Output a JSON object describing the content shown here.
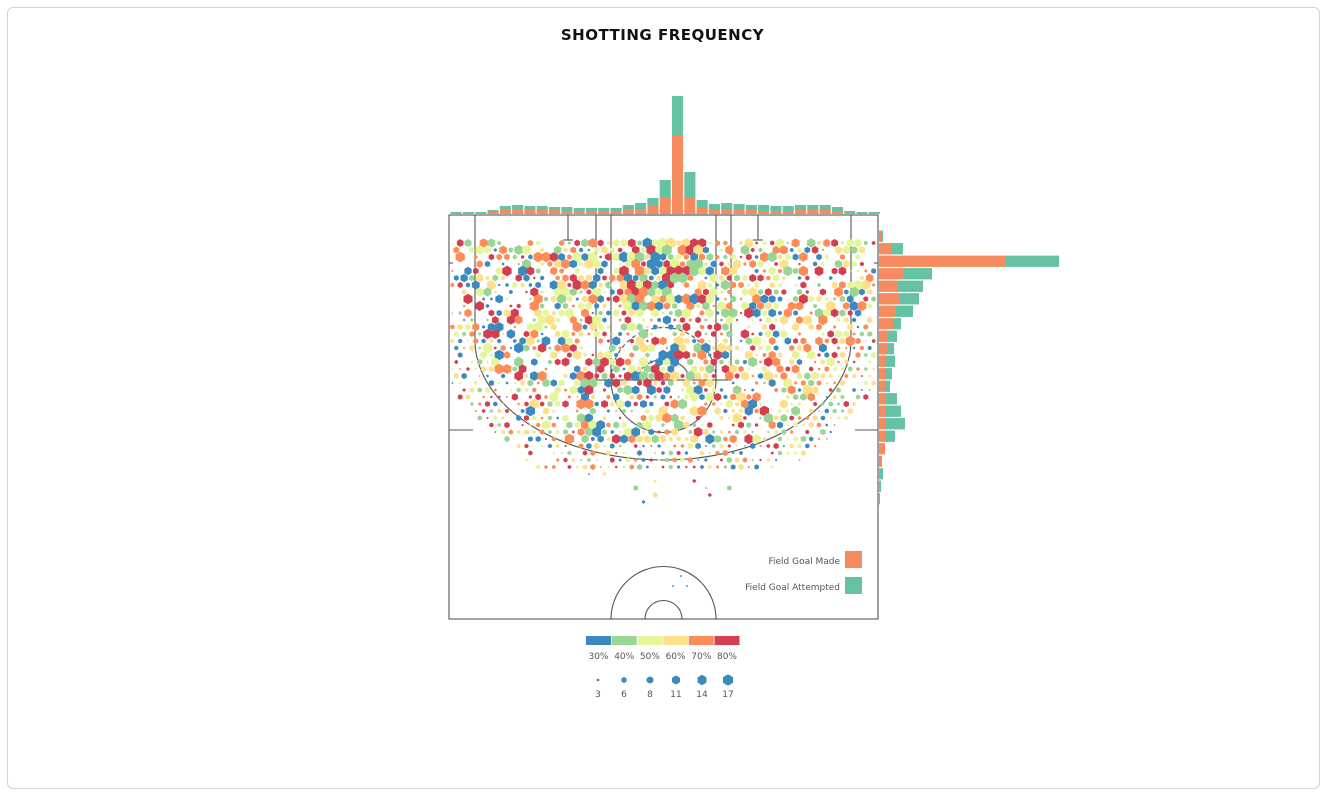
{
  "title": "SHOTTING FREQUENCY",
  "colors": {
    "made": "#f58b5e",
    "attempted": "#66c2a5",
    "scale": [
      "#3a8abf",
      "#99d594",
      "#e6f598",
      "#fee08b",
      "#fc8d59",
      "#d53e4f"
    ]
  },
  "legend": {
    "made_label": "Field Goal Made",
    "attempted_label": "Field Goal Attempted",
    "pct_labels": [
      "30%",
      "40%",
      "50%",
      "60%",
      "70%",
      "80%"
    ],
    "size_labels": [
      "3",
      "6",
      "8",
      "11",
      "14",
      "17"
    ]
  },
  "chart_data": {
    "type": "heatmap",
    "title": "SHOTTING FREQUENCY",
    "top_histogram": {
      "made": [
        1,
        1,
        1,
        2,
        5,
        5,
        4,
        5,
        4,
        3,
        3,
        2,
        3,
        3,
        5,
        5,
        8,
        17,
        78,
        16,
        7,
        4,
        5,
        4,
        4,
        3,
        3,
        3,
        4,
        4,
        4,
        2,
        1,
        0,
        0
      ],
      "attempted": [
        2,
        2,
        2,
        4,
        8,
        9,
        8,
        8,
        7,
        7,
        6,
        6,
        6,
        6,
        9,
        11,
        16,
        34,
        118,
        42,
        14,
        10,
        11,
        10,
        9,
        9,
        8,
        8,
        9,
        9,
        9,
        7,
        3,
        2,
        2
      ]
    },
    "side_histogram": {
      "made": [
        2,
        13,
        127,
        25,
        19,
        20,
        17,
        14,
        8,
        8,
        7,
        6,
        6,
        7,
        7,
        7,
        6,
        6,
        2,
        1,
        1,
        0
      ],
      "attempted": [
        4,
        24,
        180,
        53,
        44,
        40,
        34,
        22,
        18,
        15,
        16,
        13,
        11,
        18,
        22,
        26,
        16,
        3,
        3,
        4,
        2,
        1
      ]
    }
  }
}
